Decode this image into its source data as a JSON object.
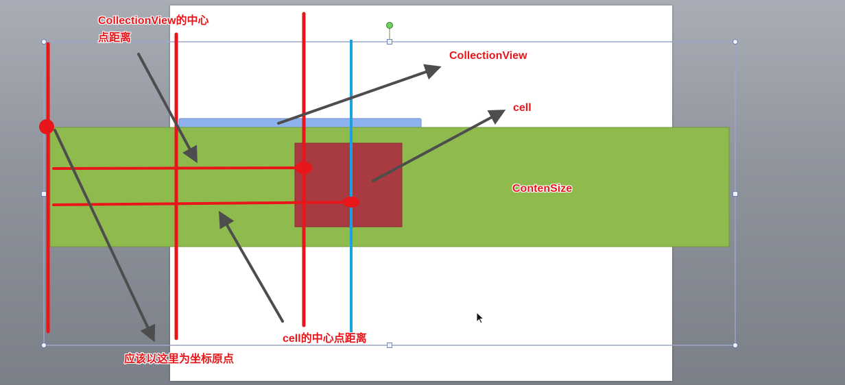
{
  "labels": {
    "cv_center_distance": "CollectionView的中心点距离",
    "collection_view": "CollectionView",
    "cell": "cell",
    "content_size": "ContenSize",
    "cell_center_distance": "cell的中心点距离",
    "origin_note": "应该以这里为坐标原点"
  },
  "colors": {
    "content_green": "#8fbb4e",
    "cell_red": "#a83a42",
    "marker_red": "#e8161b",
    "center_blue": "#1ba1e2",
    "strip_blue": "#8eb2ee",
    "arrow_gray": "#4d4d4d"
  }
}
